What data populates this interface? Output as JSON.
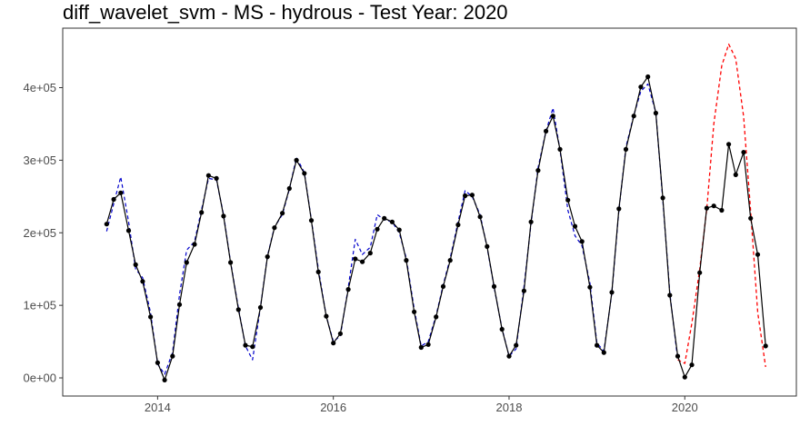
{
  "chart_data": {
    "type": "line",
    "title": "diff_wavelet_svm - MS - hydrous - Test Year: 2020",
    "xlabel": "",
    "ylabel": "",
    "xlim": [
      2012.92,
      2021.27
    ],
    "ylim": [
      -25000,
      482000
    ],
    "grid": false,
    "x_ticks": [
      2014,
      2016,
      2018,
      2020
    ],
    "x_tick_labels": [
      "2014",
      "2016",
      "2018",
      "2020"
    ],
    "y_ticks": [
      0,
      100000,
      200000,
      300000,
      400000
    ],
    "y_tick_labels": [
      "0e+00",
      "1e+05",
      "2e+05",
      "3e+05",
      "4e+05"
    ],
    "colors": {
      "actual": "#000000",
      "fitted": "#0000cc",
      "forecast": "#ff0000"
    },
    "series": [
      {
        "style": "solid-with-points",
        "x": [
          2013.42,
          2013.5,
          2013.58,
          2013.67,
          2013.75,
          2013.83,
          2013.92,
          2014.0,
          2014.08,
          2014.17,
          2014.25,
          2014.33,
          2014.42,
          2014.5,
          2014.58,
          2014.67,
          2014.75,
          2014.83,
          2014.92,
          2015.0,
          2015.08,
          2015.17,
          2015.25,
          2015.33,
          2015.42,
          2015.5,
          2015.58,
          2015.67,
          2015.75,
          2015.83,
          2015.92,
          2016.0,
          2016.08,
          2016.17,
          2016.25,
          2016.33,
          2016.42,
          2016.5,
          2016.58,
          2016.67,
          2016.75,
          2016.83,
          2016.92,
          2017.0,
          2017.08,
          2017.17,
          2017.25,
          2017.33,
          2017.42,
          2017.5,
          2017.58,
          2017.67,
          2017.75,
          2017.83,
          2017.92,
          2018.0,
          2018.08,
          2018.17,
          2018.25,
          2018.33,
          2018.42,
          2018.5,
          2018.58,
          2018.67,
          2018.75,
          2018.83,
          2018.92,
          2019.0,
          2019.08,
          2019.17,
          2019.25,
          2019.33,
          2019.42,
          2019.5,
          2019.58,
          2019.67,
          2019.75,
          2019.83,
          2019.92,
          2020.0,
          2020.08,
          2020.17,
          2020.25,
          2020.33,
          2020.42,
          2020.5,
          2020.58,
          2020.67,
          2020.75,
          2020.83,
          2020.92
        ],
        "y": [
          212000,
          246000,
          255000,
          203000,
          156000,
          133000,
          84000,
          21000,
          -3000,
          30000,
          101000,
          159000,
          184000,
          228000,
          279000,
          275000,
          223000,
          159000,
          94000,
          45000,
          43000,
          97000,
          167000,
          207000,
          227000,
          261000,
          300000,
          282000,
          217000,
          146000,
          85000,
          48000,
          61000,
          122000,
          164000,
          160000,
          172000,
          205000,
          220000,
          215000,
          204000,
          162000,
          91000,
          42000,
          46000,
          84000,
          126000,
          162000,
          211000,
          251000,
          252000,
          222000,
          181000,
          126000,
          67000,
          30000,
          45000,
          120000,
          215000,
          286000,
          340000,
          361000,
          315000,
          245000,
          209000,
          188000,
          125000,
          45000,
          35000,
          118000,
          233000,
          315000,
          361000,
          401000,
          415000,
          365000,
          248000,
          114000,
          30000,
          1000,
          18000,
          145000,
          234000,
          237000,
          231000,
          322000,
          280000,
          311000,
          220000,
          170000,
          44000
        ]
      },
      {
        "style": "dashed",
        "x": [
          2013.42,
          2013.5,
          2013.58,
          2013.67,
          2013.75,
          2013.83,
          2013.92,
          2014.0,
          2014.08,
          2014.17,
          2014.25,
          2014.33,
          2014.42,
          2014.5,
          2014.58,
          2014.67,
          2014.75,
          2014.83,
          2014.92,
          2015.0,
          2015.08,
          2015.17,
          2015.25,
          2015.33,
          2015.42,
          2015.5,
          2015.58,
          2015.67,
          2015.75,
          2015.83,
          2015.92,
          2016.0,
          2016.08,
          2016.17,
          2016.25,
          2016.33,
          2016.42,
          2016.5,
          2016.58,
          2016.67,
          2016.75,
          2016.83,
          2016.92,
          2017.0,
          2017.08,
          2017.17,
          2017.25,
          2017.33,
          2017.42,
          2017.5,
          2017.58,
          2017.67,
          2017.75,
          2017.83,
          2017.92,
          2018.0,
          2018.08,
          2018.17,
          2018.25,
          2018.33,
          2018.42,
          2018.5,
          2018.58,
          2018.67,
          2018.75,
          2018.83,
          2018.92,
          2019.0,
          2019.08,
          2019.17,
          2019.25,
          2019.33,
          2019.42,
          2019.5,
          2019.58,
          2019.67,
          2019.75,
          2019.83,
          2019.92
        ],
        "y": [
          202000,
          240000,
          277000,
          215000,
          150000,
          138000,
          90000,
          19000,
          5000,
          35000,
          115000,
          176000,
          188000,
          232000,
          275000,
          273000,
          225000,
          160000,
          96000,
          44000,
          25000,
          97000,
          168000,
          208000,
          225000,
          260000,
          304000,
          283000,
          218000,
          150000,
          85000,
          50000,
          58000,
          125000,
          191000,
          170000,
          180000,
          225000,
          218000,
          215000,
          200000,
          165000,
          95000,
          44000,
          50000,
          86000,
          128000,
          165000,
          215000,
          258000,
          250000,
          225000,
          180000,
          125000,
          68000,
          30000,
          40000,
          126000,
          212000,
          290000,
          340000,
          372000,
          314000,
          231000,
          196000,
          182000,
          131000,
          48000,
          37000,
          117000,
          231000,
          318000,
          362000,
          395000,
          405000,
          366000,
          245000,
          117000,
          25000
        ]
      },
      {
        "style": "dashed",
        "x": [
          2019.92,
          2020.0,
          2020.08,
          2020.17,
          2020.25,
          2020.33,
          2020.42,
          2020.5,
          2020.58,
          2020.67,
          2020.75,
          2020.83,
          2020.92
        ],
        "y": [
          25000,
          20000,
          75000,
          150000,
          232000,
          350000,
          430000,
          460000,
          440000,
          360000,
          230000,
          90000,
          15000
        ]
      }
    ]
  }
}
